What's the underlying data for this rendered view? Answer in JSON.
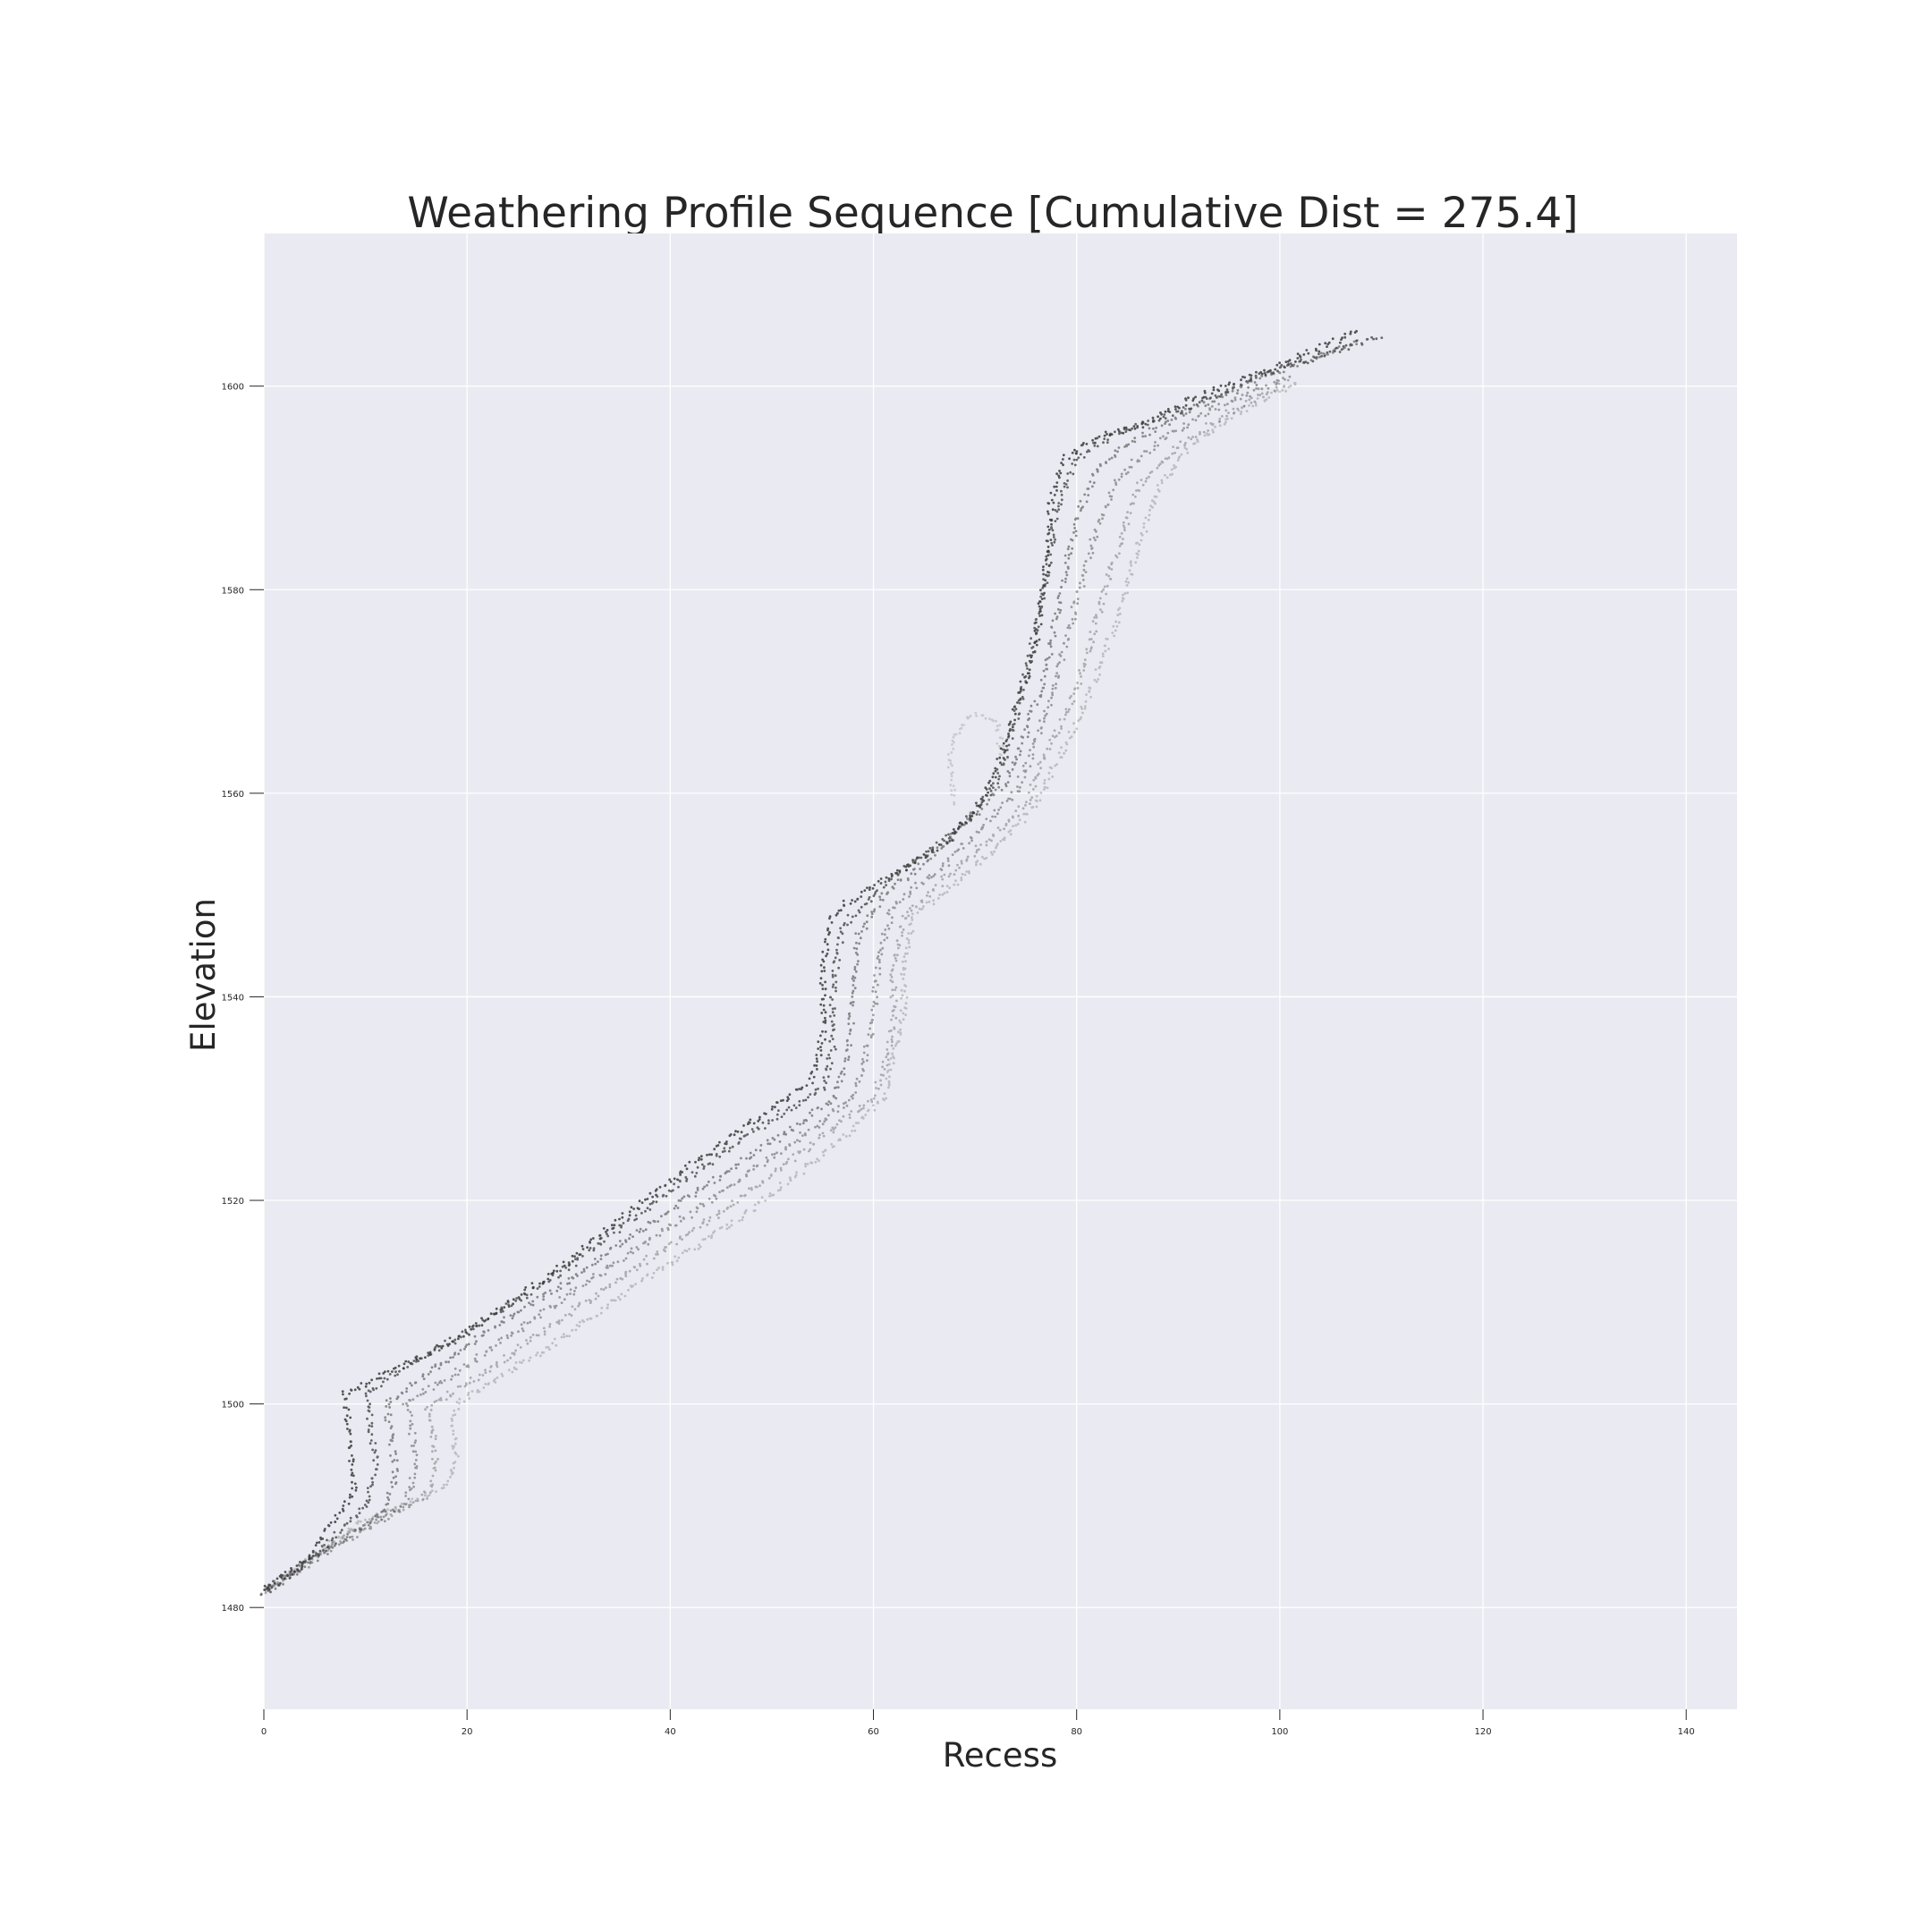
{
  "chart_data": {
    "type": "scatter",
    "title": "Weathering Profile Sequence [Cumulative Dist = 275.4]",
    "xlabel": "Recess",
    "ylabel": "Elevation",
    "xlim": [
      0,
      145
    ],
    "ylim": [
      1470,
      1615
    ],
    "xticks": [
      0,
      20,
      40,
      60,
      80,
      100,
      120,
      140
    ],
    "yticks": [
      1480,
      1500,
      1520,
      1540,
      1560,
      1580,
      1600
    ],
    "grid": true,
    "background": "#eaeaf2",
    "point_color": "#3a3a3a",
    "series": [
      {
        "opacity": 0.85,
        "points": [
          [
            0,
            1482
          ],
          [
            4,
            1484.5
          ],
          [
            8,
            1490
          ],
          [
            9,
            1492
          ],
          [
            8.5,
            1496
          ],
          [
            8,
            1501
          ],
          [
            10,
            1502
          ],
          [
            14,
            1504
          ],
          [
            20,
            1507
          ],
          [
            30,
            1514
          ],
          [
            40,
            1522
          ],
          [
            50,
            1529
          ],
          [
            54,
            1532
          ],
          [
            55,
            1536
          ],
          [
            55,
            1542
          ],
          [
            55.5,
            1547
          ],
          [
            57,
            1549
          ],
          [
            62,
            1552
          ],
          [
            67,
            1555
          ],
          [
            70,
            1558
          ],
          [
            72,
            1562
          ],
          [
            74,
            1568
          ],
          [
            76,
            1575
          ],
          [
            77,
            1582
          ],
          [
            77.5,
            1589
          ],
          [
            79,
            1593
          ],
          [
            82,
            1595
          ],
          [
            86,
            1596
          ],
          [
            92,
            1599
          ],
          [
            100,
            1602
          ],
          [
            108,
            1605.5
          ]
        ]
      },
      {
        "opacity": 0.75,
        "points": [
          [
            0,
            1481.5
          ],
          [
            5,
            1485
          ],
          [
            10,
            1490
          ],
          [
            11,
            1494
          ],
          [
            10.5,
            1498
          ],
          [
            10,
            1501
          ],
          [
            13,
            1503
          ],
          [
            20,
            1507
          ],
          [
            30,
            1513.5
          ],
          [
            40,
            1521
          ],
          [
            50,
            1528
          ],
          [
            55,
            1531
          ],
          [
            56,
            1535
          ],
          [
            56,
            1541
          ],
          [
            57,
            1547
          ],
          [
            60,
            1550
          ],
          [
            65,
            1554
          ],
          [
            70,
            1558
          ],
          [
            72,
            1561
          ],
          [
            74,
            1567
          ],
          [
            75.5,
            1574
          ],
          [
            77,
            1581
          ],
          [
            78,
            1588
          ],
          [
            80,
            1593
          ],
          [
            84,
            1595.5
          ],
          [
            90,
            1597.5
          ],
          [
            98,
            1601
          ],
          [
            110,
            1605
          ]
        ]
      },
      {
        "opacity": 0.55,
        "points": [
          [
            0,
            1481.5
          ],
          [
            6,
            1485.5
          ],
          [
            12,
            1489.5
          ],
          [
            13,
            1493
          ],
          [
            12.5,
            1497
          ],
          [
            12,
            1500
          ],
          [
            16,
            1503
          ],
          [
            22,
            1507
          ],
          [
            32,
            1513.5
          ],
          [
            42,
            1520.5
          ],
          [
            52,
            1527
          ],
          [
            56,
            1530
          ],
          [
            57.5,
            1534
          ],
          [
            58,
            1540
          ],
          [
            58.5,
            1546
          ],
          [
            61,
            1550
          ],
          [
            66,
            1554
          ],
          [
            70,
            1558
          ],
          [
            73,
            1561
          ],
          [
            75,
            1566
          ],
          [
            77,
            1572
          ],
          [
            78.5,
            1580
          ],
          [
            80,
            1587
          ],
          [
            82,
            1592
          ],
          [
            86,
            1595
          ],
          [
            92,
            1598
          ],
          [
            100,
            1601.5
          ],
          [
            108,
            1604.5
          ]
        ]
      },
      {
        "opacity": 0.45,
        "points": [
          [
            0,
            1481.5
          ],
          [
            7,
            1486
          ],
          [
            14,
            1490
          ],
          [
            15,
            1494
          ],
          [
            14.5,
            1498
          ],
          [
            14,
            1500
          ],
          [
            18,
            1502.5
          ],
          [
            24,
            1506.5
          ],
          [
            34,
            1513.5
          ],
          [
            44,
            1520
          ],
          [
            54,
            1527
          ],
          [
            58,
            1530
          ],
          [
            59,
            1533
          ],
          [
            60,
            1538
          ],
          [
            60.5,
            1544
          ],
          [
            62,
            1549
          ],
          [
            67,
            1553
          ],
          [
            71,
            1557
          ],
          [
            74,
            1560
          ],
          [
            76,
            1565
          ],
          [
            78,
            1571
          ],
          [
            80,
            1579
          ],
          [
            82,
            1586
          ],
          [
            84,
            1591
          ],
          [
            88,
            1594.5
          ],
          [
            93,
            1597.5
          ],
          [
            101,
            1601
          ]
        ]
      },
      {
        "opacity": 0.35,
        "points": [
          [
            0,
            1481.5
          ],
          [
            8,
            1487
          ],
          [
            16,
            1491
          ],
          [
            17,
            1494
          ],
          [
            16.5,
            1498
          ],
          [
            16,
            1499.5
          ],
          [
            20,
            1502
          ],
          [
            26,
            1506
          ],
          [
            36,
            1513
          ],
          [
            46,
            1519.5
          ],
          [
            56,
            1527
          ],
          [
            60,
            1530
          ],
          [
            61,
            1533
          ],
          [
            62,
            1537
          ],
          [
            62,
            1543
          ],
          [
            63,
            1548
          ],
          [
            68,
            1552.5
          ],
          [
            72,
            1556
          ],
          [
            75,
            1559
          ],
          [
            77,
            1564
          ],
          [
            80,
            1570
          ],
          [
            82,
            1577
          ],
          [
            84,
            1584
          ],
          [
            86,
            1590
          ],
          [
            90,
            1594
          ],
          [
            95,
            1597.5
          ],
          [
            101,
            1600.5
          ]
        ]
      },
      {
        "opacity": 0.25,
        "points": [
          [
            0,
            1481.5
          ],
          [
            9,
            1488
          ],
          [
            18,
            1492
          ],
          [
            19,
            1495
          ],
          [
            18.5,
            1498
          ],
          [
            19,
            1500
          ],
          [
            22,
            1502
          ],
          [
            28,
            1505.5
          ],
          [
            38,
            1512.5
          ],
          [
            48,
            1519
          ],
          [
            58,
            1527
          ],
          [
            61,
            1530
          ],
          [
            62,
            1534
          ],
          [
            63,
            1538
          ],
          [
            63,
            1543
          ],
          [
            64,
            1548
          ],
          [
            69,
            1552
          ],
          [
            73,
            1555.5
          ],
          [
            76,
            1559
          ],
          [
            78,
            1563
          ],
          [
            81,
            1569
          ],
          [
            84,
            1577
          ],
          [
            86,
            1584
          ],
          [
            88,
            1590
          ],
          [
            91,
            1594
          ],
          [
            96,
            1597.5
          ],
          [
            102,
            1600.5
          ]
        ]
      },
      {
        "opacity": 0.18,
        "points": [
          [
            68,
            1559
          ],
          [
            67.5,
            1563
          ],
          [
            68,
            1566
          ],
          [
            70,
            1568
          ],
          [
            72,
            1567
          ],
          [
            73,
            1563
          ]
        ]
      }
    ]
  }
}
